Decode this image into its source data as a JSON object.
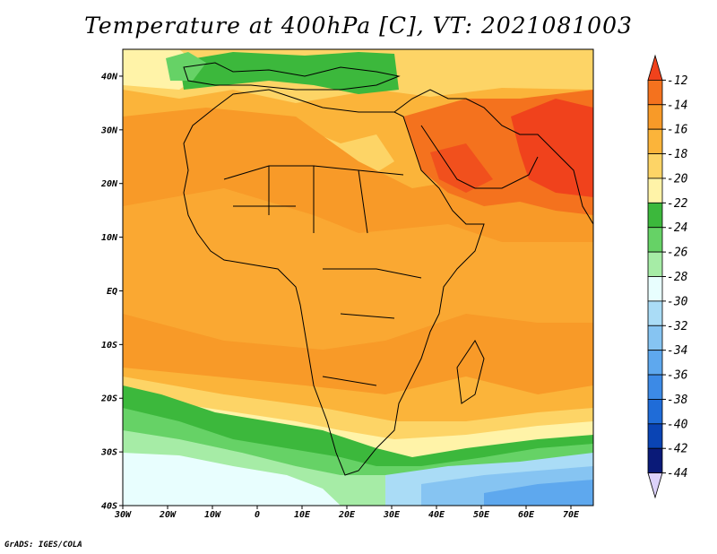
{
  "title": "Temperature at 400hPa [C], VT: 2021081003",
  "credit": "GrADS: IGES/COLA",
  "map": {
    "lon_range": [
      -30,
      75
    ],
    "lat_range": [
      -40,
      45
    ],
    "lat_ticks": [
      {
        "lat": 40,
        "label": "40N"
      },
      {
        "lat": 30,
        "label": "30N"
      },
      {
        "lat": 20,
        "label": "20N"
      },
      {
        "lat": 10,
        "label": "10N"
      },
      {
        "lat": 0,
        "label": "EQ"
      },
      {
        "lat": -10,
        "label": "10S"
      },
      {
        "lat": -20,
        "label": "20S"
      },
      {
        "lat": -30,
        "label": "30S"
      },
      {
        "lat": -40,
        "label": "40S"
      }
    ],
    "lon_ticks": [
      {
        "lon": -30,
        "label": "30W"
      },
      {
        "lon": -20,
        "label": "20W"
      },
      {
        "lon": -10,
        "label": "10W"
      },
      {
        "lon": 0,
        "label": "0"
      },
      {
        "lon": 10,
        "label": "10E"
      },
      {
        "lon": 20,
        "label": "20E"
      },
      {
        "lon": 30,
        "label": "30E"
      },
      {
        "lon": 40,
        "label": "40E"
      },
      {
        "lon": 50,
        "label": "50E"
      },
      {
        "lon": 60,
        "label": "60E"
      },
      {
        "lon": 70,
        "label": "70E"
      }
    ]
  },
  "colorbar": {
    "levels": [
      "-12",
      "-14",
      "-16",
      "-18",
      "-20",
      "-22",
      "-24",
      "-26",
      "-28",
      "-30",
      "-32",
      "-34",
      "-36",
      "-38",
      "-40",
      "-42",
      "-44"
    ],
    "colors": [
      "#f0421c",
      "#f4721e",
      "#f89a28",
      "#fbb43a",
      "#fdd466",
      "#fff3a8",
      "#3cb83c",
      "#66d266",
      "#a6eca6",
      "#e8fefe",
      "#aadcf6",
      "#86c4f2",
      "#5ea8ee",
      "#3c8ae6",
      "#1f6cd8",
      "#0a44b4",
      "#0a1a78",
      "#dcd2fa"
    ]
  }
}
